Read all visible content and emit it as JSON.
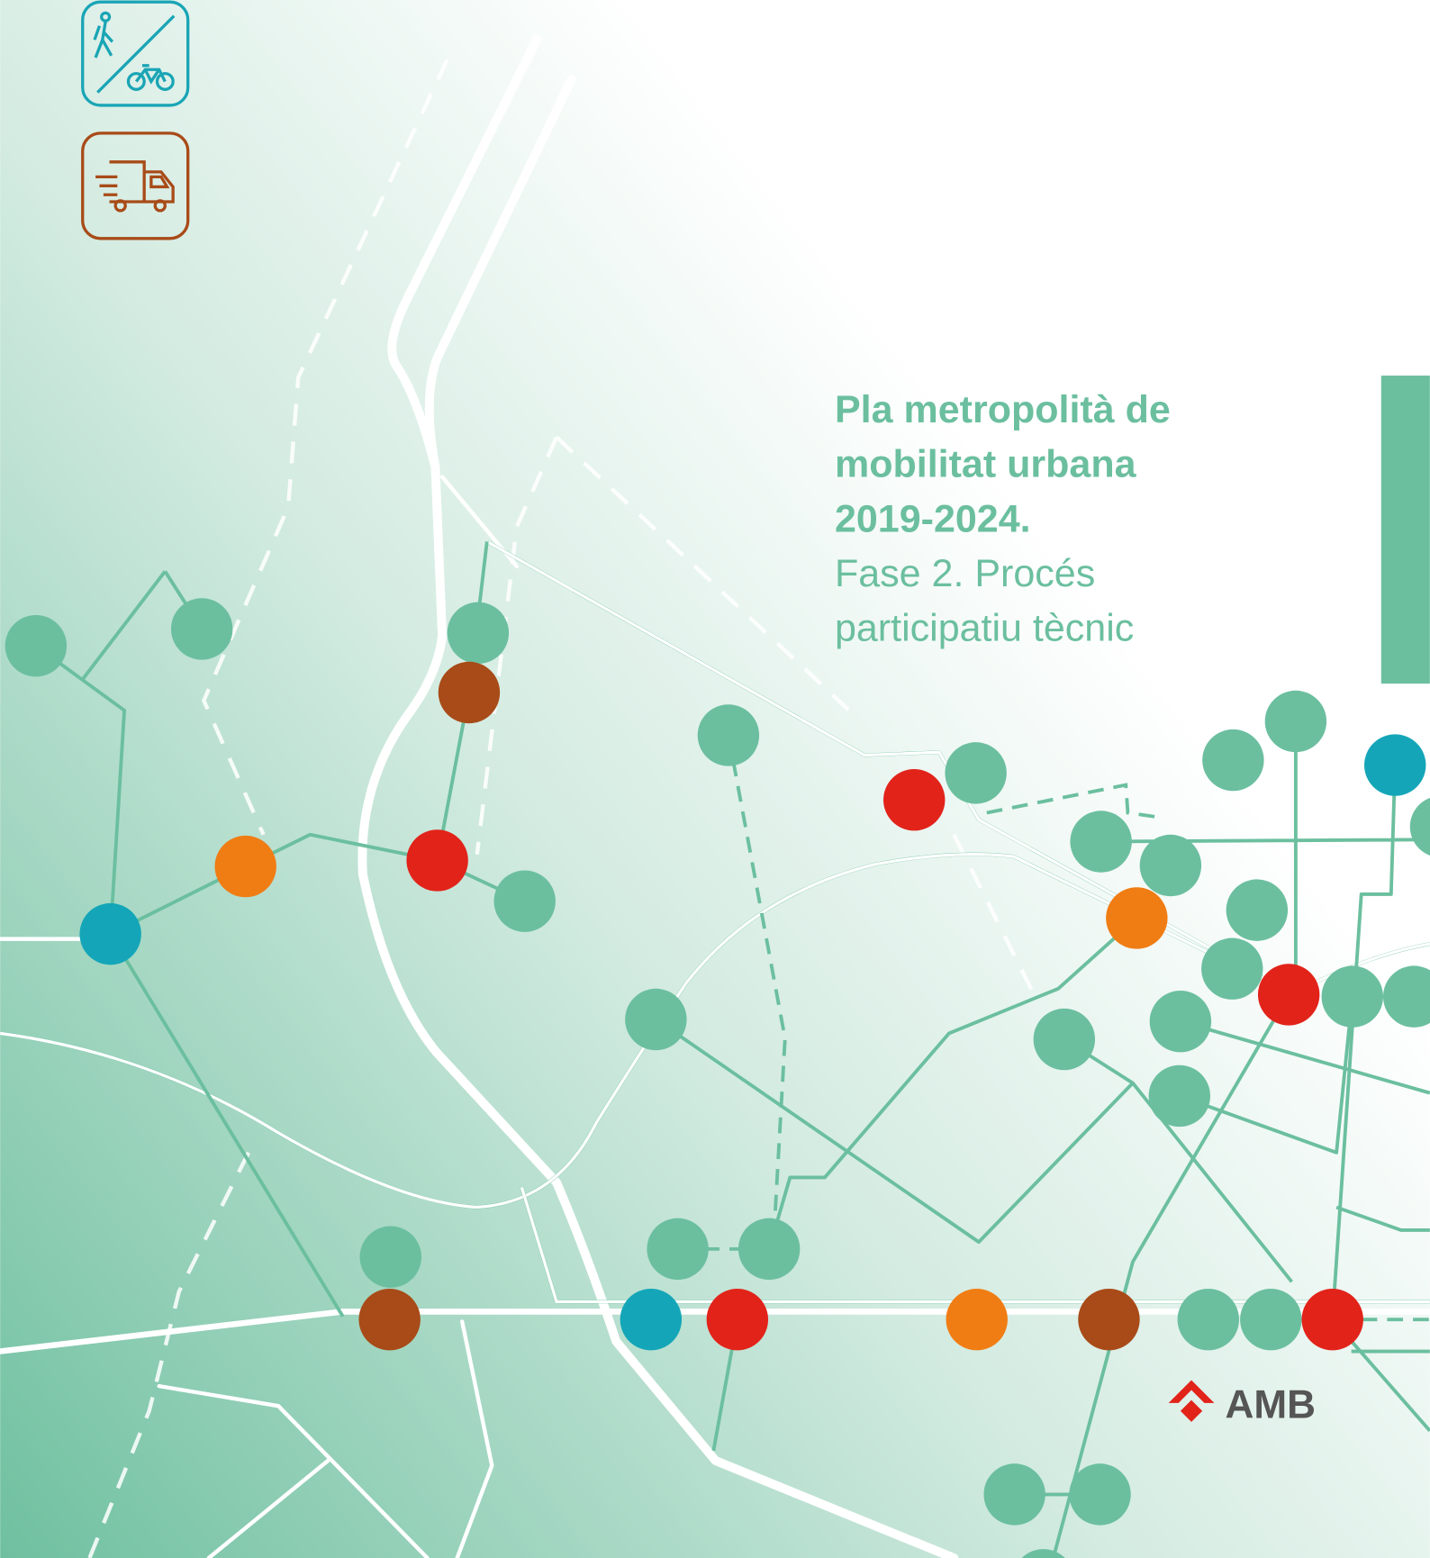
{
  "title": {
    "lines": [
      "Pla metropolità de",
      "mobilitat urbana",
      "2019-2024."
    ]
  },
  "subtitle": {
    "lines": [
      "Fase 2. Procés",
      "participatiu tècnic"
    ]
  },
  "logo": {
    "text": "AMB"
  }
}
